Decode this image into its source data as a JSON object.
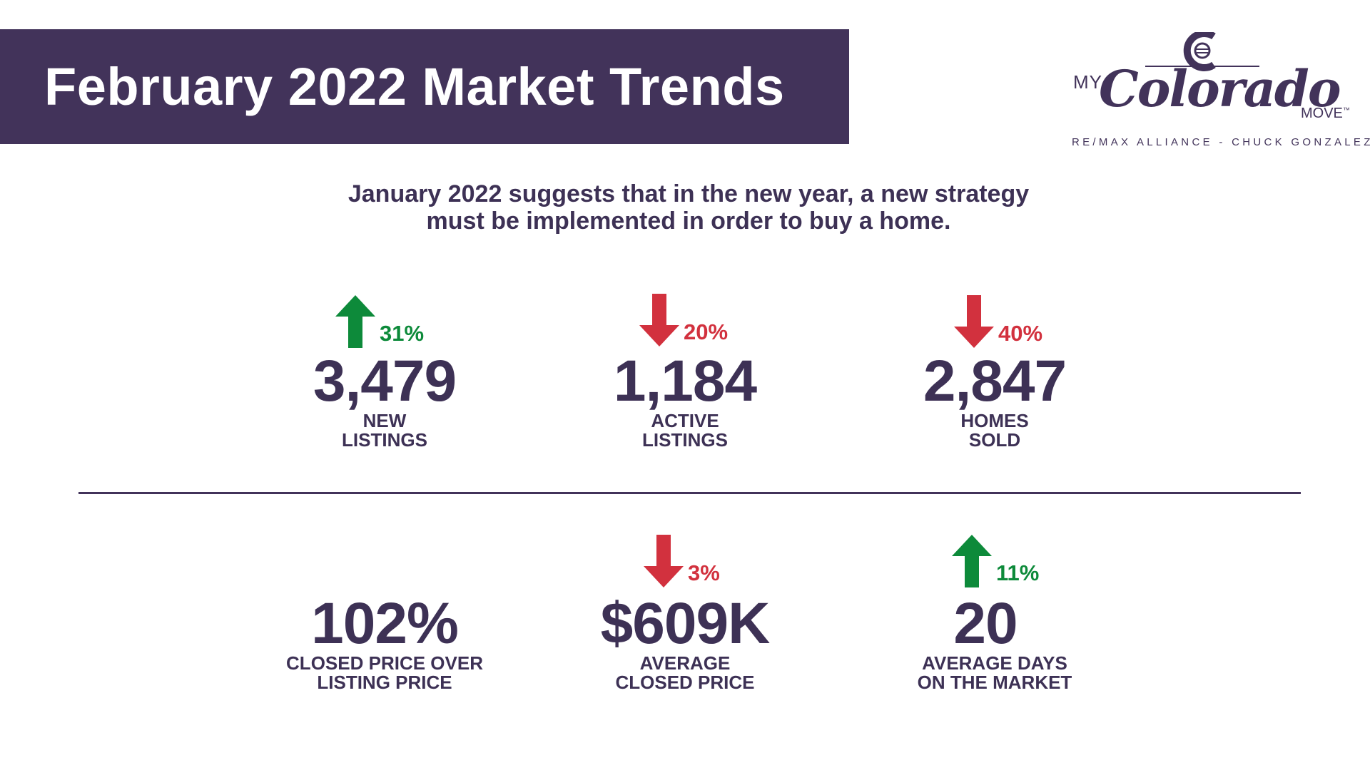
{
  "header": {
    "title": "February 2022 Market Trends"
  },
  "logo": {
    "my": "MY",
    "script": "Colorado",
    "move": "MOVE",
    "tm": "™",
    "tagline": "RE/MAX ALLIANCE - CHUCK GONZALEZ"
  },
  "subtitle": {
    "line1": "January 2022 suggests that in the new year, a new strategy",
    "line2": "must be implemented in order to buy a home."
  },
  "stats": {
    "new_listings": {
      "value": "3,479",
      "label_line1": "NEW",
      "label_line2": "LISTINGS",
      "change": "31%",
      "direction": "up",
      "icon": "arrow-up-icon"
    },
    "active_listings": {
      "value": "1,184",
      "label_line1": "ACTIVE",
      "label_line2": "LISTINGS",
      "change": "20%",
      "direction": "down",
      "icon": "arrow-down-icon"
    },
    "homes_sold": {
      "value": "2,847",
      "label_line1": "HOMES",
      "label_line2": "SOLD",
      "change": "40%",
      "direction": "down",
      "icon": "arrow-down-icon"
    },
    "closed_over_list": {
      "value": "102%",
      "label_line1": "CLOSED PRICE OVER",
      "label_line2": "LISTING PRICE"
    },
    "avg_closed_price": {
      "value": "$609K",
      "label_line1": "AVERAGE",
      "label_line2": "CLOSED PRICE",
      "change": "3%",
      "direction": "down",
      "icon": "arrow-down-icon"
    },
    "avg_days_on_market": {
      "value": "20",
      "label_line1": "AVERAGE DAYS",
      "label_line2": "ON THE MARKET",
      "change": "11%",
      "direction": "up",
      "icon": "arrow-up-icon"
    }
  },
  "colors": {
    "brand_purple": "#42335a",
    "text_purple": "#3d3155",
    "up_green": "#0d8a3a",
    "down_red": "#d2313e"
  }
}
